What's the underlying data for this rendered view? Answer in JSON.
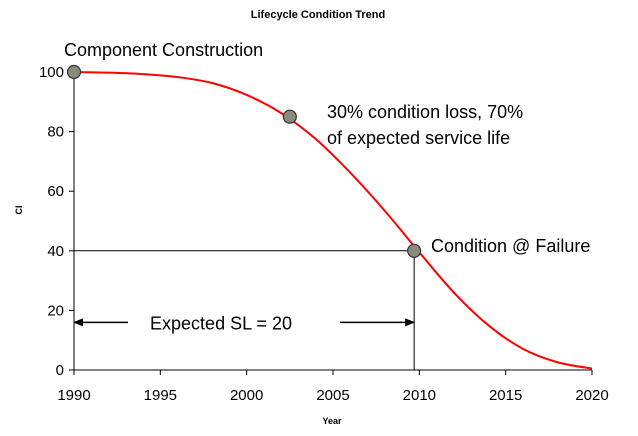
{
  "chart_data": {
    "type": "line",
    "title": "Lifecycle Condition Trend",
    "xlabel": "Year",
    "ylabel": "CI",
    "xlim": [
      1990,
      2020
    ],
    "ylim": [
      0,
      100
    ],
    "xticks": [
      1990,
      1995,
      2000,
      2005,
      2010,
      2015,
      2020
    ],
    "yticks": [
      0,
      20,
      40,
      60,
      80,
      100
    ],
    "grid": false,
    "legend": "none",
    "series": [
      {
        "color": "#ff0000",
        "x": [
          1990,
          1992,
          1994,
          1996,
          1998,
          2000,
          2002,
          2004,
          2006,
          2008,
          2010,
          2012,
          2014,
          2016,
          2018,
          2020
        ],
        "y": [
          100,
          99.8,
          99.3,
          98.3,
          96.3,
          92.3,
          86.2,
          77.5,
          66.2,
          53.4,
          39.5,
          26.0,
          15.0,
          7.1,
          2.6,
          0.5
        ]
      }
    ],
    "markers": [
      {
        "x": 1990,
        "y": 100,
        "label": "Component Construction"
      },
      {
        "x": 2002.5,
        "y": 85,
        "label": "30% condition loss, 70%",
        "label2": "of expected service life"
      },
      {
        "x": 2009.7,
        "y": 40,
        "label": "Condition @ Failure"
      }
    ],
    "reference_lines": {
      "horizontal_y": 40,
      "vertical_x": 2009.7
    },
    "span_annotation": {
      "x_start": 1990,
      "x_end": 2009.7,
      "y": 16,
      "label": "Expected SL = 20"
    }
  }
}
